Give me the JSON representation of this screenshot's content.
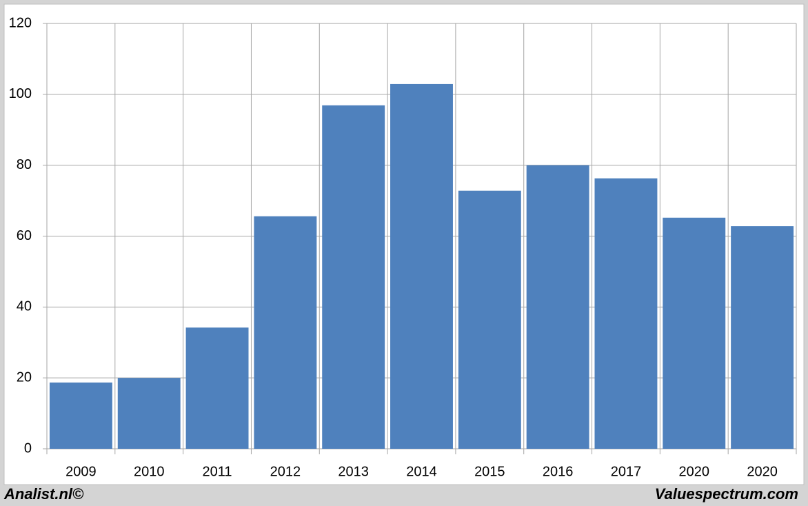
{
  "chart_data": {
    "type": "bar",
    "categories": [
      "2009",
      "2010",
      "2011",
      "2012",
      "2013",
      "2014",
      "2015",
      "2016",
      "2017",
      "2020",
      "2020"
    ],
    "values": [
      18.7,
      20,
      34.2,
      65.6,
      96.9,
      102.9,
      72.8,
      80,
      76.3,
      65.2,
      62.8
    ],
    "color": "#4f81bd",
    "ylim": [
      0,
      120
    ],
    "yticks": [
      0,
      20,
      40,
      60,
      80,
      100,
      120
    ],
    "grid": true
  },
  "footer": {
    "left": "Analist.nl©",
    "right": "Valuespectrum.com"
  }
}
